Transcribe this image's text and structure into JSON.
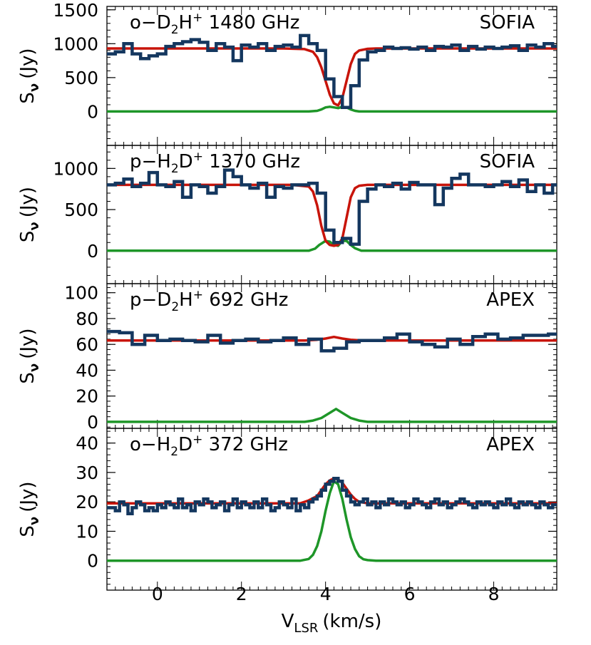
{
  "figure": {
    "xlabel_main": "V",
    "xlabel_sub": "LSR",
    "xlabel_unit": "(km/s)",
    "ylabel_main": "S",
    "ylabel_sub": "ν",
    "ylabel_unit": "(Jy)",
    "xlim": [
      -1.2,
      9.5
    ],
    "xticks": [
      0,
      2,
      4,
      6,
      8
    ],
    "xtick_labels": [
      "0",
      "2",
      "4",
      "6",
      "8"
    ],
    "colors": {
      "observed": "#14375f",
      "model": "#c8140a",
      "component": "#1e9628",
      "axes": "#000000"
    }
  },
  "chart_data": [
    {
      "type": "line",
      "title": {
        "prefix": "o−D",
        "sub": "2",
        "mid": "H",
        "sup": "+",
        "suffix": " 1480 GHz"
      },
      "telescope": "SOFIA",
      "ylim": [
        -500,
        1550
      ],
      "yticks": [
        0,
        500,
        1000,
        1500
      ],
      "ytick_labels": [
        "0",
        "500",
        "1000",
        "1500"
      ],
      "series": [
        {
          "name": "observed",
          "style": "step",
          "step": 0.2,
          "x": [
            -1.2,
            -1.0,
            -0.8,
            -0.6,
            -0.4,
            -0.2,
            0.0,
            0.2,
            0.4,
            0.6,
            0.8,
            1.0,
            1.2,
            1.4,
            1.6,
            1.8,
            2.0,
            2.2,
            2.4,
            2.6,
            2.8,
            3.0,
            3.2,
            3.4,
            3.6,
            3.8,
            4.0,
            4.2,
            4.4,
            4.6,
            4.8,
            5.0,
            5.2,
            5.4,
            5.6,
            5.8,
            6.0,
            6.2,
            6.4,
            6.6,
            6.8,
            7.0,
            7.2,
            7.4,
            7.6,
            7.8,
            8.0,
            8.2,
            8.4,
            8.6,
            8.8,
            9.0,
            9.2,
            9.4
          ],
          "y": [
            850,
            880,
            1000,
            850,
            780,
            820,
            850,
            960,
            1000,
            1030,
            1060,
            1020,
            900,
            1000,
            950,
            750,
            980,
            950,
            1000,
            900,
            960,
            980,
            950,
            1120,
            1000,
            900,
            480,
            220,
            60,
            380,
            760,
            880,
            900,
            950,
            930,
            940,
            920,
            950,
            900,
            960,
            950,
            980,
            900,
            960,
            920,
            950,
            930,
            950,
            970,
            900,
            980,
            950,
            1000,
            960
          ]
        },
        {
          "name": "model",
          "style": "line",
          "x": [
            -1.2,
            3.0,
            3.5,
            3.7,
            3.8,
            3.9,
            4.0,
            4.1,
            4.2,
            4.3,
            4.4,
            4.5,
            4.6,
            4.7,
            4.8,
            5.0,
            5.2,
            9.5
          ],
          "y": [
            930,
            930,
            920,
            880,
            800,
            650,
            450,
            250,
            120,
            90,
            200,
            450,
            700,
            850,
            900,
            925,
            930,
            930
          ]
        },
        {
          "name": "component",
          "style": "line",
          "x": [
            -1.2,
            3.6,
            3.8,
            3.9,
            4.0,
            4.1,
            4.2,
            4.3,
            4.4,
            4.5,
            4.6,
            4.7,
            4.8,
            5.0,
            9.5
          ],
          "y": [
            0,
            0,
            10,
            30,
            60,
            70,
            60,
            50,
            70,
            60,
            30,
            10,
            0,
            0,
            0
          ]
        }
      ]
    },
    {
      "type": "line",
      "title": {
        "prefix": "p−H",
        "sub": "2",
        "mid": "D",
        "sup": "+",
        "suffix": " 1370 GHz"
      },
      "telescope": "SOFIA",
      "ylim": [
        -400,
        1280
      ],
      "yticks": [
        0,
        500,
        1000
      ],
      "ytick_labels": [
        "0",
        "500",
        "1000"
      ],
      "series": [
        {
          "name": "observed",
          "style": "step",
          "step": 0.2,
          "x": [
            -1.2,
            -1.0,
            -0.8,
            -0.6,
            -0.4,
            -0.2,
            0.0,
            0.2,
            0.4,
            0.6,
            0.8,
            1.0,
            1.2,
            1.4,
            1.6,
            1.8,
            2.0,
            2.2,
            2.4,
            2.6,
            2.8,
            3.0,
            3.2,
            3.4,
            3.6,
            3.8,
            4.0,
            4.2,
            4.4,
            4.6,
            4.8,
            5.0,
            5.2,
            5.4,
            5.6,
            5.8,
            6.0,
            6.2,
            6.4,
            6.6,
            6.8,
            7.0,
            7.2,
            7.4,
            7.6,
            7.8,
            8.0,
            8.2,
            8.4,
            8.6,
            8.8,
            9.0,
            9.2,
            9.4
          ],
          "y": [
            800,
            820,
            870,
            780,
            820,
            950,
            800,
            780,
            840,
            650,
            800,
            780,
            700,
            780,
            980,
            900,
            800,
            760,
            820,
            650,
            780,
            760,
            800,
            800,
            820,
            700,
            250,
            100,
            150,
            80,
            600,
            750,
            800,
            780,
            820,
            750,
            830,
            800,
            800,
            560,
            760,
            880,
            930,
            800,
            800,
            780,
            800,
            840,
            780,
            860,
            720,
            800,
            700,
            800
          ]
        },
        {
          "name": "model",
          "style": "line",
          "x": [
            -1.2,
            3.2,
            3.6,
            3.7,
            3.8,
            3.9,
            4.0,
            4.1,
            4.2,
            4.3,
            4.4,
            4.5,
            4.6,
            4.7,
            4.8,
            5.0,
            5.3,
            9.5
          ],
          "y": [
            800,
            800,
            780,
            720,
            550,
            300,
            120,
            70,
            60,
            70,
            150,
            400,
            650,
            760,
            790,
            800,
            800,
            800
          ]
        },
        {
          "name": "component",
          "style": "line",
          "x": [
            -1.2,
            3.6,
            3.75,
            3.85,
            4.0,
            4.1,
            4.2,
            4.3,
            4.4,
            4.5,
            4.6,
            4.7,
            4.85,
            9.5
          ],
          "y": [
            0,
            0,
            25,
            70,
            120,
            110,
            70,
            60,
            120,
            120,
            70,
            30,
            0,
            0
          ]
        }
      ]
    },
    {
      "type": "line",
      "title": {
        "prefix": "p−D",
        "sub": "2",
        "mid": "H",
        "sup": "+",
        "suffix": " 692 GHz"
      },
      "telescope": "APEX",
      "ylim": [
        -5,
        107
      ],
      "yticks": [
        0,
        20,
        40,
        60,
        80,
        100
      ],
      "ytick_labels": [
        "0",
        "20",
        "40",
        "60",
        "80",
        "100"
      ],
      "series": [
        {
          "name": "observed",
          "style": "step",
          "step": 0.3,
          "x": [
            -1.2,
            -0.9,
            -0.6,
            -0.3,
            0.0,
            0.3,
            0.6,
            0.9,
            1.2,
            1.5,
            1.8,
            2.1,
            2.4,
            2.7,
            3.0,
            3.3,
            3.6,
            3.9,
            4.2,
            4.5,
            4.8,
            5.1,
            5.4,
            5.7,
            6.0,
            6.3,
            6.6,
            6.9,
            7.2,
            7.5,
            7.8,
            8.1,
            8.4,
            8.7,
            9.0,
            9.3
          ],
          "y": [
            70,
            69,
            60,
            67,
            63,
            64,
            63,
            62,
            67,
            61,
            63,
            64,
            62,
            63,
            65,
            60,
            64,
            55,
            57,
            62,
            63,
            63,
            65,
            68,
            62,
            60,
            58,
            64,
            60,
            66,
            68,
            64,
            65,
            67,
            67,
            68
          ]
        },
        {
          "name": "model",
          "style": "line",
          "x": [
            -1.2,
            3.5,
            3.8,
            4.0,
            4.2,
            4.4,
            4.6,
            4.9,
            9.5
          ],
          "y": [
            63,
            63,
            63.6,
            64.5,
            65.8,
            64.5,
            63.6,
            63,
            63
          ]
        },
        {
          "name": "component",
          "style": "line",
          "x": [
            -1.2,
            3.5,
            3.7,
            3.9,
            4.1,
            4.25,
            4.4,
            4.6,
            4.8,
            5.0,
            9.5
          ],
          "y": [
            0,
            0,
            1,
            3,
            7,
            10,
            7,
            3,
            1,
            0,
            0
          ]
        }
      ]
    },
    {
      "type": "line",
      "title": {
        "prefix": "o−H",
        "sub": "2",
        "mid": "D",
        "sup": "+",
        "suffix": " 372 GHz"
      },
      "telescope": "APEX",
      "ylim": [
        -10,
        45
      ],
      "yticks": [
        0,
        10,
        20,
        30,
        40
      ],
      "ytick_labels": [
        "0",
        "10",
        "20",
        "30",
        "40"
      ],
      "series": [
        {
          "name": "observed",
          "style": "step",
          "step": 0.1,
          "x": [
            -1.2,
            -1.1,
            -1.0,
            -0.9,
            -0.8,
            -0.7,
            -0.6,
            -0.5,
            -0.4,
            -0.3,
            -0.2,
            -0.1,
            0.0,
            0.1,
            0.2,
            0.3,
            0.4,
            0.5,
            0.6,
            0.7,
            0.8,
            0.9,
            1.0,
            1.1,
            1.2,
            1.3,
            1.4,
            1.5,
            1.6,
            1.7,
            1.8,
            1.9,
            2.0,
            2.1,
            2.2,
            2.3,
            2.4,
            2.5,
            2.6,
            2.7,
            2.8,
            2.9,
            3.0,
            3.1,
            3.2,
            3.3,
            3.4,
            3.5,
            3.6,
            3.7,
            3.8,
            3.9,
            4.0,
            4.1,
            4.2,
            4.3,
            4.4,
            4.5,
            4.6,
            4.7,
            4.8,
            4.9,
            5.0,
            5.1,
            5.2,
            5.3,
            5.4,
            5.5,
            5.6,
            5.7,
            5.8,
            5.9,
            6.0,
            6.1,
            6.2,
            6.3,
            6.4,
            6.5,
            6.6,
            6.7,
            6.8,
            6.9,
            7.0,
            7.1,
            7.2,
            7.3,
            7.4,
            7.5,
            7.6,
            7.7,
            7.8,
            7.9,
            8.0,
            8.1,
            8.2,
            8.3,
            8.4,
            8.5,
            8.6,
            8.7,
            8.8,
            8.9,
            9.0,
            9.1,
            9.2,
            9.3,
            9.4
          ],
          "y": [
            18,
            18,
            17,
            20,
            19,
            16,
            18,
            20,
            19,
            17,
            18,
            17,
            19,
            18,
            20,
            19,
            18,
            21,
            18,
            19,
            17,
            20,
            19,
            21,
            20,
            18,
            19,
            20,
            17,
            19,
            21,
            18,
            20,
            19,
            18,
            20,
            18,
            21,
            19,
            17,
            18,
            20,
            19,
            18,
            21,
            17,
            19,
            18,
            20,
            21,
            22,
            24,
            26,
            27,
            28,
            27,
            24,
            22,
            20,
            19,
            20,
            21,
            19,
            20,
            18,
            20,
            19,
            21,
            20,
            19,
            20,
            18,
            19,
            21,
            20,
            19,
            18,
            20,
            21,
            19,
            20,
            18,
            19,
            20,
            21,
            20,
            19,
            18,
            20,
            19,
            20,
            19,
            18,
            20,
            19,
            21,
            19,
            18,
            20,
            19,
            20,
            19,
            18,
            20,
            19,
            18,
            19
          ]
        },
        {
          "name": "model",
          "style": "line",
          "x": [
            -1.2,
            3.4,
            3.6,
            3.8,
            3.9,
            4.0,
            4.1,
            4.2,
            4.3,
            4.4,
            4.5,
            4.6,
            4.7,
            4.8,
            5.0,
            9.5
          ],
          "y": [
            19.5,
            19.5,
            20.5,
            22,
            24,
            26,
            27.3,
            28,
            27.6,
            26.5,
            24.5,
            22.5,
            21,
            20,
            19.5,
            19.5
          ]
        },
        {
          "name": "component",
          "style": "line",
          "x": [
            -1.2,
            3.4,
            3.6,
            3.7,
            3.8,
            3.9,
            4.0,
            4.1,
            4.2,
            4.3,
            4.4,
            4.5,
            4.6,
            4.7,
            4.8,
            4.9,
            5.0,
            5.2,
            9.5
          ],
          "y": [
            0,
            0,
            0.6,
            2,
            5,
            10,
            17,
            23,
            27,
            26,
            21,
            14,
            8,
            4,
            1.5,
            0.5,
            0.2,
            0,
            0
          ]
        }
      ]
    }
  ]
}
